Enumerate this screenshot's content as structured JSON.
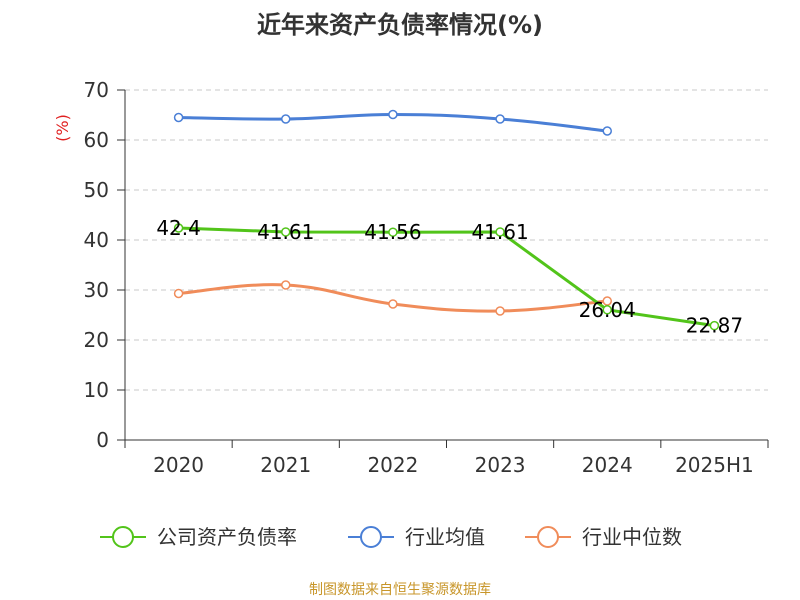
{
  "chart_data": {
    "type": "line",
    "title": "近年来资产负债率情况(%)",
    "ylabel": "(%)",
    "categories": [
      "2020",
      "2021",
      "2022",
      "2023",
      "2024",
      "2025H1"
    ],
    "ylim": [
      0,
      70
    ],
    "yticks": [
      0,
      10,
      20,
      30,
      40,
      50,
      60,
      70
    ],
    "grid": "horizontal dashed",
    "legend_position": "bottom",
    "series": [
      {
        "name": "公司资产负债率",
        "color": "#52c41a",
        "values": [
          42.4,
          41.61,
          41.56,
          41.61,
          26.04,
          22.87
        ],
        "labels": [
          "42.4",
          "41.61",
          "41.56",
          "41.61",
          "26.04",
          "22.87"
        ],
        "smooth": false
      },
      {
        "name": "行业均值",
        "color": "#4a7fd6",
        "values": [
          64.5,
          64.2,
          65.1,
          64.2,
          61.8,
          null
        ],
        "smooth": true
      },
      {
        "name": "行业中位数",
        "color": "#f08c5a",
        "values": [
          29.3,
          31.0,
          27.2,
          25.8,
          27.8,
          null
        ],
        "smooth": true
      }
    ],
    "source": "制图数据来自恒生聚源数据库"
  }
}
